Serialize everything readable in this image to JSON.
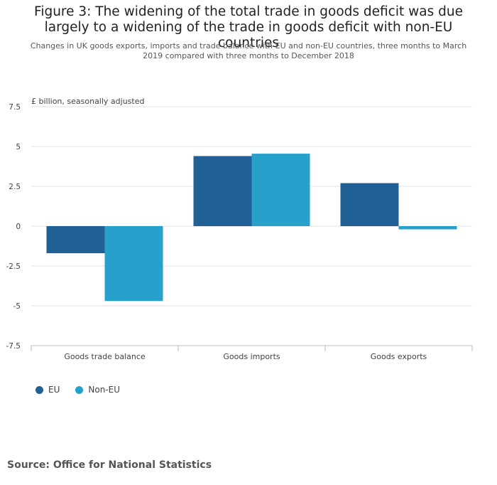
{
  "title": "Figure 3: The widening of the total trade in goods deficit was due largely to a widening of the trade in goods deficit with non-EU countries",
  "subtitle": "Changes in UK goods exports, imports and trade balance with EU and non-EU countries, three months to March 2019 compared with three months to December 2018",
  "source": "Source: Office for National Statistics",
  "colors": {
    "eu": "#206095",
    "non_eu": "#27a0cc",
    "grid": "#e0e0e0",
    "axis": "#bcbcbc"
  },
  "chart_data": {
    "type": "bar",
    "ylabel": "£ billion, seasonally adjusted",
    "categories": [
      "Goods trade balance",
      "Goods imports",
      "Goods exports"
    ],
    "series": [
      {
        "name": "EU",
        "values": [
          -1.7,
          4.4,
          2.7
        ]
      },
      {
        "name": "Non-EU",
        "values": [
          -4.7,
          4.55,
          -0.2
        ]
      }
    ],
    "ylim": [
      -7.5,
      7.5
    ],
    "yticks": [
      "7.5",
      "5",
      "2.5",
      "0",
      "-2.5",
      "-5",
      "-7.5"
    ],
    "grid": true,
    "legend": "bottom-left"
  }
}
